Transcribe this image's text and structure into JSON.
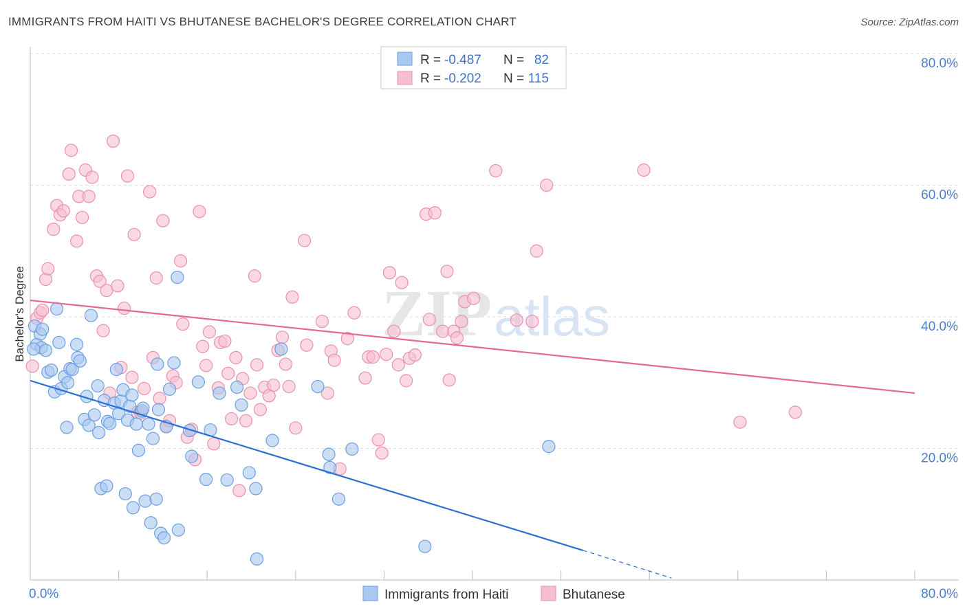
{
  "title": "IMMIGRANTS FROM HAITI VS BHUTANESE BACHELOR'S DEGREE CORRELATION CHART",
  "source": "Source: ZipAtlas.com",
  "watermark": {
    "zip": "ZIP",
    "atlas": "atlas"
  },
  "legend": {
    "haiti": {
      "r_label": "R =",
      "r_value": "-0.487",
      "n_label": "N =",
      "n_value": "82"
    },
    "bhutanese": {
      "r_label": "R =",
      "r_value": "-0.202",
      "n_label": "N =",
      "n_value": "115"
    }
  },
  "chart_data": {
    "type": "scatter",
    "title": "IMMIGRANTS FROM HAITI VS BHUTANESE BACHELOR'S DEGREE CORRELATION CHART",
    "xlabel": "",
    "ylabel": "Bachelor's Degree",
    "xlim": [
      0,
      80
    ],
    "ylim": [
      0,
      80
    ],
    "x_ticks": [
      "0.0%",
      "80.0%"
    ],
    "y_ticks": [
      {
        "value": 20,
        "label": "20.0%"
      },
      {
        "value": 40,
        "label": "40.0%"
      },
      {
        "value": 60,
        "label": "60.0%"
      },
      {
        "value": 80,
        "label": "80.0%"
      }
    ],
    "colors": {
      "haiti_fill": "#a9c8f0",
      "haiti_stroke": "#6b9ee0",
      "haiti_line": "#2b6fd4",
      "bhutanese_fill": "#f6bfd1",
      "bhutanese_stroke": "#ea8fae",
      "bhutanese_line": "#e46894",
      "tick_text": "#4a7fd0",
      "grid": "#dddddd"
    },
    "series": [
      {
        "name": "Immigrants from Haiti",
        "trend": {
          "x0": 0,
          "y0": 30.3,
          "x1": 50,
          "y1": 4.5,
          "dash_to_x": 58,
          "dash_to_y": 0.3
        },
        "points": [
          [
            0.4,
            38.6
          ],
          [
            0.6,
            35.8
          ],
          [
            0.9,
            37.4
          ],
          [
            1.0,
            35.3
          ],
          [
            1.1,
            38.1
          ],
          [
            1.4,
            34.9
          ],
          [
            1.6,
            31.6
          ],
          [
            1.9,
            31.9
          ],
          [
            2.2,
            28.6
          ],
          [
            2.4,
            41.2
          ],
          [
            2.6,
            36.1
          ],
          [
            2.8,
            29.1
          ],
          [
            3.1,
            30.9
          ],
          [
            3.3,
            23.2
          ],
          [
            3.4,
            30.0
          ],
          [
            3.6,
            32.1
          ],
          [
            3.8,
            32.0
          ],
          [
            4.2,
            35.8
          ],
          [
            4.3,
            33.8
          ],
          [
            4.5,
            33.3
          ],
          [
            4.9,
            24.4
          ],
          [
            5.1,
            27.9
          ],
          [
            5.3,
            23.5
          ],
          [
            5.5,
            40.2
          ],
          [
            5.8,
            25.1
          ],
          [
            6.1,
            29.5
          ],
          [
            6.2,
            22.4
          ],
          [
            6.4,
            13.9
          ],
          [
            6.7,
            27.3
          ],
          [
            6.9,
            14.3
          ],
          [
            7.0,
            24.1
          ],
          [
            7.2,
            23.8
          ],
          [
            7.6,
            26.9
          ],
          [
            7.8,
            32.0
          ],
          [
            8.0,
            25.3
          ],
          [
            8.2,
            27.2
          ],
          [
            8.4,
            28.9
          ],
          [
            8.6,
            13.1
          ],
          [
            8.8,
            24.3
          ],
          [
            9.0,
            26.4
          ],
          [
            9.2,
            28.1
          ],
          [
            9.3,
            11.0
          ],
          [
            9.6,
            23.7
          ],
          [
            9.8,
            19.7
          ],
          [
            10.1,
            25.7
          ],
          [
            10.2,
            26.1
          ],
          [
            10.4,
            12.0
          ],
          [
            10.7,
            23.7
          ],
          [
            10.9,
            8.7
          ],
          [
            11.1,
            21.5
          ],
          [
            11.4,
            12.3
          ],
          [
            11.5,
            32.8
          ],
          [
            11.6,
            25.9
          ],
          [
            11.8,
            7.1
          ],
          [
            12.1,
            6.4
          ],
          [
            12.3,
            23.3
          ],
          [
            12.6,
            29.0
          ],
          [
            13.0,
            33.0
          ],
          [
            13.3,
            46.0
          ],
          [
            13.4,
            7.6
          ],
          [
            14.4,
            22.7
          ],
          [
            14.6,
            18.8
          ],
          [
            15.2,
            30.1
          ],
          [
            15.9,
            15.3
          ],
          [
            16.3,
            22.8
          ],
          [
            17.1,
            28.4
          ],
          [
            17.8,
            15.2
          ],
          [
            18.7,
            29.3
          ],
          [
            19.1,
            26.6
          ],
          [
            19.8,
            16.3
          ],
          [
            20.4,
            13.9
          ],
          [
            20.5,
            3.2
          ],
          [
            21.9,
            21.2
          ],
          [
            22.7,
            35.1
          ],
          [
            26.0,
            29.4
          ],
          [
            27.0,
            19.1
          ],
          [
            27.1,
            17.1
          ],
          [
            27.9,
            12.3
          ],
          [
            29.1,
            19.9
          ],
          [
            35.7,
            5.1
          ],
          [
            46.9,
            20.3
          ],
          [
            0.3,
            35.1
          ]
        ]
      },
      {
        "name": "Bhutanese",
        "trend": {
          "x0": 0,
          "y0": 42.5,
          "x1": 80,
          "y1": 28.4
        },
        "points": [
          [
            0.2,
            32.5
          ],
          [
            0.6,
            39.8
          ],
          [
            0.9,
            40.6
          ],
          [
            1.1,
            41.0
          ],
          [
            1.4,
            45.7
          ],
          [
            1.6,
            47.3
          ],
          [
            2.1,
            53.3
          ],
          [
            2.4,
            56.9
          ],
          [
            2.7,
            55.5
          ],
          [
            3.0,
            56.1
          ],
          [
            3.5,
            61.7
          ],
          [
            3.7,
            65.3
          ],
          [
            4.2,
            51.5
          ],
          [
            4.4,
            58.3
          ],
          [
            4.7,
            55.1
          ],
          [
            5.0,
            62.3
          ],
          [
            5.3,
            58.3
          ],
          [
            5.6,
            61.2
          ],
          [
            6.0,
            46.2
          ],
          [
            6.3,
            45.4
          ],
          [
            6.6,
            37.9
          ],
          [
            6.9,
            44.0
          ],
          [
            7.2,
            28.4
          ],
          [
            7.5,
            66.7
          ],
          [
            7.9,
            44.7
          ],
          [
            8.2,
            32.3
          ],
          [
            8.5,
            41.3
          ],
          [
            8.8,
            61.4
          ],
          [
            9.2,
            30.8
          ],
          [
            9.4,
            52.5
          ],
          [
            9.7,
            25.5
          ],
          [
            10.0,
            25.4
          ],
          [
            10.3,
            29.1
          ],
          [
            10.8,
            59.0
          ],
          [
            11.1,
            33.8
          ],
          [
            11.4,
            45.9
          ],
          [
            11.7,
            27.6
          ],
          [
            12.0,
            54.6
          ],
          [
            12.3,
            23.4
          ],
          [
            12.6,
            24.2
          ],
          [
            12.9,
            31.0
          ],
          [
            13.2,
            30.0
          ],
          [
            13.6,
            48.5
          ],
          [
            13.8,
            38.9
          ],
          [
            14.2,
            21.7
          ],
          [
            14.6,
            22.9
          ],
          [
            14.9,
            18.3
          ],
          [
            15.3,
            56.0
          ],
          [
            15.6,
            35.5
          ],
          [
            15.9,
            32.6
          ],
          [
            16.2,
            37.7
          ],
          [
            16.6,
            20.7
          ],
          [
            17.0,
            29.2
          ],
          [
            17.2,
            36.1
          ],
          [
            17.6,
            36.3
          ],
          [
            17.9,
            31.4
          ],
          [
            18.2,
            24.5
          ],
          [
            18.6,
            33.8
          ],
          [
            18.9,
            13.6
          ],
          [
            19.2,
            30.6
          ],
          [
            19.5,
            24.2
          ],
          [
            19.9,
            28.4
          ],
          [
            20.3,
            46.2
          ],
          [
            20.5,
            32.7
          ],
          [
            20.8,
            25.9
          ],
          [
            21.2,
            29.3
          ],
          [
            21.6,
            28.0
          ],
          [
            22.0,
            29.6
          ],
          [
            22.4,
            34.9
          ],
          [
            22.8,
            36.9
          ],
          [
            23.1,
            32.8
          ],
          [
            23.4,
            29.4
          ],
          [
            23.7,
            43.0
          ],
          [
            24.0,
            23.1
          ],
          [
            24.8,
            51.6
          ],
          [
            25.0,
            35.7
          ],
          [
            26.4,
            39.3
          ],
          [
            26.9,
            28.4
          ],
          [
            27.2,
            34.8
          ],
          [
            27.5,
            33.4
          ],
          [
            28.0,
            16.9
          ],
          [
            28.7,
            36.7
          ],
          [
            29.3,
            40.6
          ],
          [
            30.3,
            30.7
          ],
          [
            30.6,
            33.9
          ],
          [
            31.0,
            33.9
          ],
          [
            31.5,
            21.3
          ],
          [
            31.8,
            19.3
          ],
          [
            32.2,
            34.3
          ],
          [
            32.5,
            46.7
          ],
          [
            32.9,
            37.8
          ],
          [
            33.3,
            32.7
          ],
          [
            33.6,
            45.2
          ],
          [
            34.0,
            30.3
          ],
          [
            34.3,
            33.7
          ],
          [
            34.8,
            34.2
          ],
          [
            35.8,
            55.6
          ],
          [
            36.1,
            39.6
          ],
          [
            36.6,
            55.8
          ],
          [
            37.3,
            37.8
          ],
          [
            37.7,
            46.9
          ],
          [
            37.9,
            30.4
          ],
          [
            38.3,
            37.8
          ],
          [
            38.6,
            36.8
          ],
          [
            39.0,
            39.3
          ],
          [
            39.3,
            42.3
          ],
          [
            40.1,
            42.8
          ],
          [
            42.1,
            62.2
          ],
          [
            44.0,
            39.5
          ],
          [
            45.4,
            39.3
          ],
          [
            45.8,
            50.0
          ],
          [
            46.7,
            60.0
          ],
          [
            55.5,
            62.3
          ],
          [
            64.2,
            24.0
          ],
          [
            69.2,
            25.5
          ]
        ]
      }
    ]
  },
  "bottom_legend": {
    "haiti_label": "Immigrants from Haiti",
    "bhutanese_label": "Bhutanese"
  }
}
